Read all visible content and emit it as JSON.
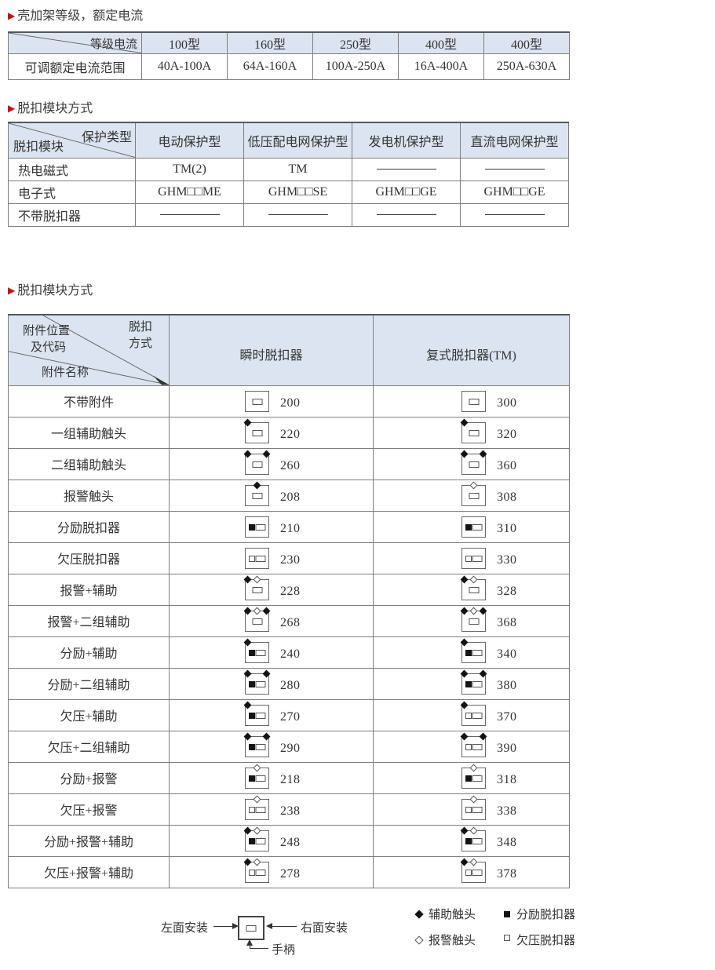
{
  "colors": {
    "accent": "#c41111",
    "header_bg": "#dce4f1",
    "border": "#7e7e7e",
    "text": "#333333"
  },
  "section_frame": {
    "marker": "▶",
    "title": "壳加架等级，额定电流",
    "table": {
      "corner_label": "等级电流",
      "columns": [
        "100型",
        "160型",
        "250型",
        "400型",
        "400型"
      ],
      "row_label": "可调额定电流范围",
      "values": [
        "40A-100A",
        "64A-160A",
        "100A-250A",
        "16A-400A",
        "250A-630A"
      ]
    }
  },
  "section_trip": {
    "marker": "▶",
    "title": "脱扣模块方式",
    "table": {
      "corner_top": "保护类型",
      "corner_bottom": "脱扣模块",
      "columns": [
        "电动保护型",
        "低压配电网保护型",
        "发电机保护型",
        "直流电网保护型"
      ],
      "rows": [
        {
          "label": "热电磁式",
          "values": [
            "TM(2)",
            "TM",
            "dash",
            "dash"
          ]
        },
        {
          "label": "电子式",
          "values": [
            "GHM□□ME",
            "GHM□□SE",
            "GHM□□GE",
            "GHM□□GE"
          ]
        },
        {
          "label": "不带脱扣器",
          "values": [
            "dash",
            "dash",
            "dash",
            "dash"
          ]
        }
      ]
    }
  },
  "section_accessory": {
    "marker": "▶",
    "title": "脱扣模块方式",
    "table": {
      "corner": {
        "position_line1": "附件位置",
        "position_line2": "及代码",
        "mode_line1": "脱扣",
        "mode_line2": "方式",
        "name_label": "附件名称"
      },
      "columns": [
        "瞬时脱扣器",
        "复式脱扣器(TM)"
      ],
      "rows": [
        {
          "label": "不带附件",
          "instant": {
            "code": "200",
            "icon": {}
          },
          "compound": {
            "code": "300",
            "icon": {}
          }
        },
        {
          "label": "一组辅助触头",
          "instant": {
            "code": "220",
            "icon": {
              "tl": "f"
            }
          },
          "compound": {
            "code": "320",
            "icon": {
              "tl": "f"
            }
          }
        },
        {
          "label": "二组辅助触头",
          "instant": {
            "code": "260",
            "icon": {
              "tl": "f",
              "tr": "f"
            }
          },
          "compound": {
            "code": "360",
            "icon": {
              "tl": "f",
              "tr": "f"
            }
          }
        },
        {
          "label": "报警触头",
          "instant": {
            "code": "208",
            "icon": {
              "tc": "f"
            }
          },
          "compound": {
            "code": "308",
            "icon": {
              "tc": "h"
            }
          }
        },
        {
          "label": "分励脱扣器",
          "instant": {
            "code": "210",
            "icon": {
              "left": "f"
            }
          },
          "compound": {
            "code": "310",
            "icon": {
              "left": "f"
            }
          }
        },
        {
          "label": "欠压脱扣器",
          "instant": {
            "code": "230",
            "icon": {
              "left": "h"
            }
          },
          "compound": {
            "code": "330",
            "icon": {
              "left": "h"
            }
          }
        },
        {
          "label": "报警+辅助",
          "instant": {
            "code": "228",
            "icon": {
              "tl": "f",
              "tc": "h"
            }
          },
          "compound": {
            "code": "328",
            "icon": {
              "tl": "f",
              "tc": "h"
            }
          }
        },
        {
          "label": "报警+二组辅助",
          "instant": {
            "code": "268",
            "icon": {
              "tl": "f",
              "tc": "h",
              "tr": "f"
            }
          },
          "compound": {
            "code": "368",
            "icon": {
              "tl": "f",
              "tc": "h",
              "tr": "f"
            }
          }
        },
        {
          "label": "分励+辅助",
          "instant": {
            "code": "240",
            "icon": {
              "tl": "f",
              "left": "f"
            }
          },
          "compound": {
            "code": "340",
            "icon": {
              "tl": "f",
              "left": "f"
            }
          }
        },
        {
          "label": "分励+二组辅助",
          "instant": {
            "code": "280",
            "icon": {
              "tl": "f",
              "tr": "f",
              "left": "f"
            }
          },
          "compound": {
            "code": "380",
            "icon": {
              "tl": "f",
              "tr": "f",
              "left": "f"
            }
          }
        },
        {
          "label": "欠压+辅助",
          "instant": {
            "code": "270",
            "icon": {
              "tl": "f",
              "left": "f"
            }
          },
          "compound": {
            "code": "370",
            "icon": {
              "tl": "f",
              "left": "h"
            }
          }
        },
        {
          "label": "欠压+二组辅助",
          "instant": {
            "code": "290",
            "icon": {
              "tl": "f",
              "tr": "f",
              "left": "f"
            }
          },
          "compound": {
            "code": "390",
            "icon": {
              "tl": "f",
              "tr": "f",
              "left": "h"
            }
          }
        },
        {
          "label": "分励+报警",
          "instant": {
            "code": "218",
            "icon": {
              "tc": "h",
              "left": "f"
            }
          },
          "compound": {
            "code": "318",
            "icon": {
              "tc": "h",
              "left": "f"
            }
          }
        },
        {
          "label": "欠压+报警",
          "instant": {
            "code": "238",
            "icon": {
              "tc": "h",
              "left": "h"
            }
          },
          "compound": {
            "code": "338",
            "icon": {
              "tc": "h",
              "left": "h"
            }
          }
        },
        {
          "label": "分励+报警+辅助",
          "instant": {
            "code": "248",
            "icon": {
              "tl": "f",
              "tc": "h",
              "left": "f"
            }
          },
          "compound": {
            "code": "348",
            "icon": {
              "tl": "f",
              "tc": "h",
              "left": "f"
            }
          }
        },
        {
          "label": "欠压+报警+辅助",
          "instant": {
            "code": "278",
            "icon": {
              "tl": "f",
              "tc": "h",
              "left": "h"
            }
          },
          "compound": {
            "code": "378",
            "icon": {
              "tl": "f",
              "tc": "h",
              "left": "h"
            }
          }
        }
      ]
    }
  },
  "diagram": {
    "left_mount": "左面安装",
    "right_mount": "右面安装",
    "handle": "手柄"
  },
  "legend": {
    "items": [
      {
        "symbol": "filled-diamond",
        "label": "辅助触头"
      },
      {
        "symbol": "filled-square",
        "label": "分励脱扣器"
      },
      {
        "symbol": "hollow-diamond",
        "label": "报警触头"
      },
      {
        "symbol": "hollow-square",
        "label": "欠压脱扣器"
      }
    ]
  }
}
